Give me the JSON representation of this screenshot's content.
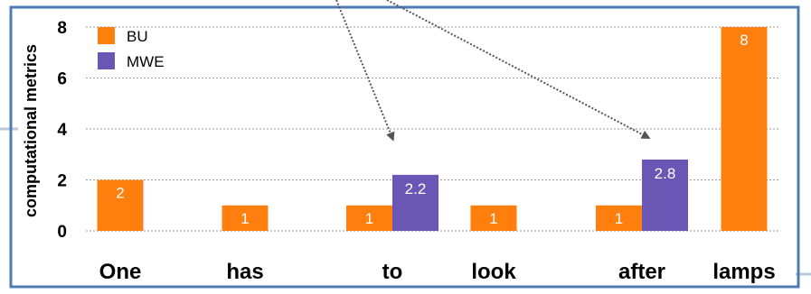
{
  "chart_data": {
    "type": "bar",
    "categories": [
      "One",
      "has",
      "to",
      "look",
      "after",
      "lamps"
    ],
    "series": [
      {
        "name": "BU",
        "values": [
          2,
          1,
          1,
          1,
          1,
          8
        ]
      },
      {
        "name": "MWE",
        "values": [
          null,
          null,
          2.2,
          null,
          2.8,
          null
        ]
      }
    ],
    "data_labels": {
      "BU": [
        "2",
        "1",
        "1",
        "1",
        "1",
        "8"
      ],
      "MWE": [
        null,
        null,
        "2.2",
        null,
        "2.8",
        null
      ]
    },
    "title": "",
    "xlabel": "",
    "ylabel": "computational metrics",
    "ylim": [
      0,
      8.7
    ],
    "yticks": [
      0,
      2,
      4,
      6,
      8
    ],
    "grid": true,
    "legend_position": "top-left",
    "colors": {
      "BU": "#FF7F0E",
      "MWE": "#6A57B5",
      "frame": "#4F7BB5",
      "grid": "#9A9A9A",
      "arrow": "#555555"
    }
  }
}
